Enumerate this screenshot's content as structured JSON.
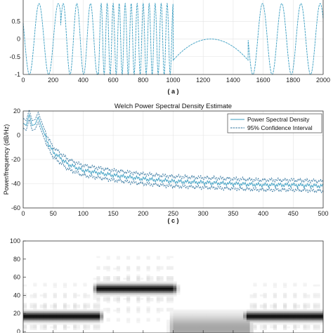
{
  "chart_data": [
    {
      "type": "line",
      "caption": "( a )",
      "xlim": [
        0,
        2000
      ],
      "ylim": [
        -1,
        1
      ],
      "x_ticks": [
        "0",
        "200",
        "400",
        "600",
        "800",
        "1000",
        "1200",
        "1400",
        "1600",
        "1800",
        "2000"
      ],
      "y_ticks": [
        "0.5",
        "0",
        "-0.5",
        "-1"
      ],
      "grid": true,
      "line_color": "#3a9ec2",
      "segments": [
        {
          "x_range": [
            0,
            250
          ],
          "cycles_per_100": 0.78
        },
        {
          "x_range": [
            250,
            500
          ],
          "cycles_per_100": 1.1
        },
        {
          "x_range": [
            500,
            1000
          ],
          "cycles_per_100": 2.5
        },
        {
          "x_range": [
            1000,
            1500
          ],
          "shape": "arc",
          "peak": [
            1250,
            0
          ],
          "ends": [
            [
              1000,
              -0.6
            ],
            [
              1500,
              -0.6
            ]
          ]
        },
        {
          "x_range": [
            1500,
            2000
          ],
          "cycles_per_100": 0.78
        }
      ]
    },
    {
      "type": "line",
      "caption": "( c )",
      "title": "Welch Power Spectral Density Estimate",
      "ylabel": "Power/frequency (dB/Hz)",
      "xlabel": "",
      "xlim": [
        0,
        500
      ],
      "ylim": [
        -60,
        20
      ],
      "x_ticks": [
        "0",
        "50",
        "100",
        "150",
        "200",
        "250",
        "300",
        "350",
        "400",
        "450",
        "500"
      ],
      "y_ticks": [
        "20",
        "0",
        "-20",
        "-40",
        "-60"
      ],
      "grid": true,
      "legend": {
        "placement": "top-right",
        "entries": [
          "Power Spectral Density",
          "95% Confidence Interval"
        ]
      },
      "series": [
        {
          "name": "Power Spectral Density",
          "color": "#3a9ec2",
          "style": "solid",
          "x": [
            0,
            5,
            10,
            15,
            20,
            25,
            30,
            40,
            50,
            75,
            100,
            150,
            200,
            250,
            300,
            350,
            400,
            450,
            500
          ],
          "y": [
            10,
            8,
            17,
            8,
            9,
            15,
            8,
            -5,
            -14,
            -24,
            -29,
            -33,
            -36,
            -38,
            -39,
            -40,
            -41,
            -41,
            -42
          ]
        },
        {
          "name": "95% Confidence Interval",
          "color": "#2a6f9a",
          "style": "dashed",
          "x": [
            0,
            5,
            10,
            15,
            20,
            25,
            30,
            40,
            50,
            75,
            100,
            150,
            200,
            250,
            300,
            350,
            400,
            450,
            500
          ],
          "upper": [
            14,
            12,
            21,
            12,
            13,
            19,
            12,
            -1,
            -10,
            -20,
            -25,
            -29,
            -32,
            -34,
            -35,
            -36,
            -37,
            -37,
            -38
          ],
          "lower": [
            6,
            4,
            13,
            4,
            5,
            11,
            4,
            -9,
            -18,
            -28,
            -33,
            -37,
            -40,
            -42,
            -43,
            -44,
            -45,
            -45,
            -46
          ]
        }
      ]
    },
    {
      "type": "heatmap",
      "xlim": [
        0,
        2000
      ],
      "ylim": [
        0,
        100
      ],
      "y_ticks": [
        "100",
        "80",
        "60",
        "40",
        "20",
        "0"
      ],
      "colormap": "grayscale-inverted",
      "bands": [
        {
          "x_range": [
            0,
            500
          ],
          "y_center": 18,
          "intensity": 0.95
        },
        {
          "x_range": [
            500,
            1000
          ],
          "y_center": 48,
          "intensity": 0.95
        },
        {
          "x_range": [
            1000,
            1500
          ],
          "y_center": 5,
          "intensity": 0.35
        },
        {
          "x_range": [
            1500,
            2000
          ],
          "y_center": 18,
          "intensity": 0.95
        }
      ]
    }
  ]
}
